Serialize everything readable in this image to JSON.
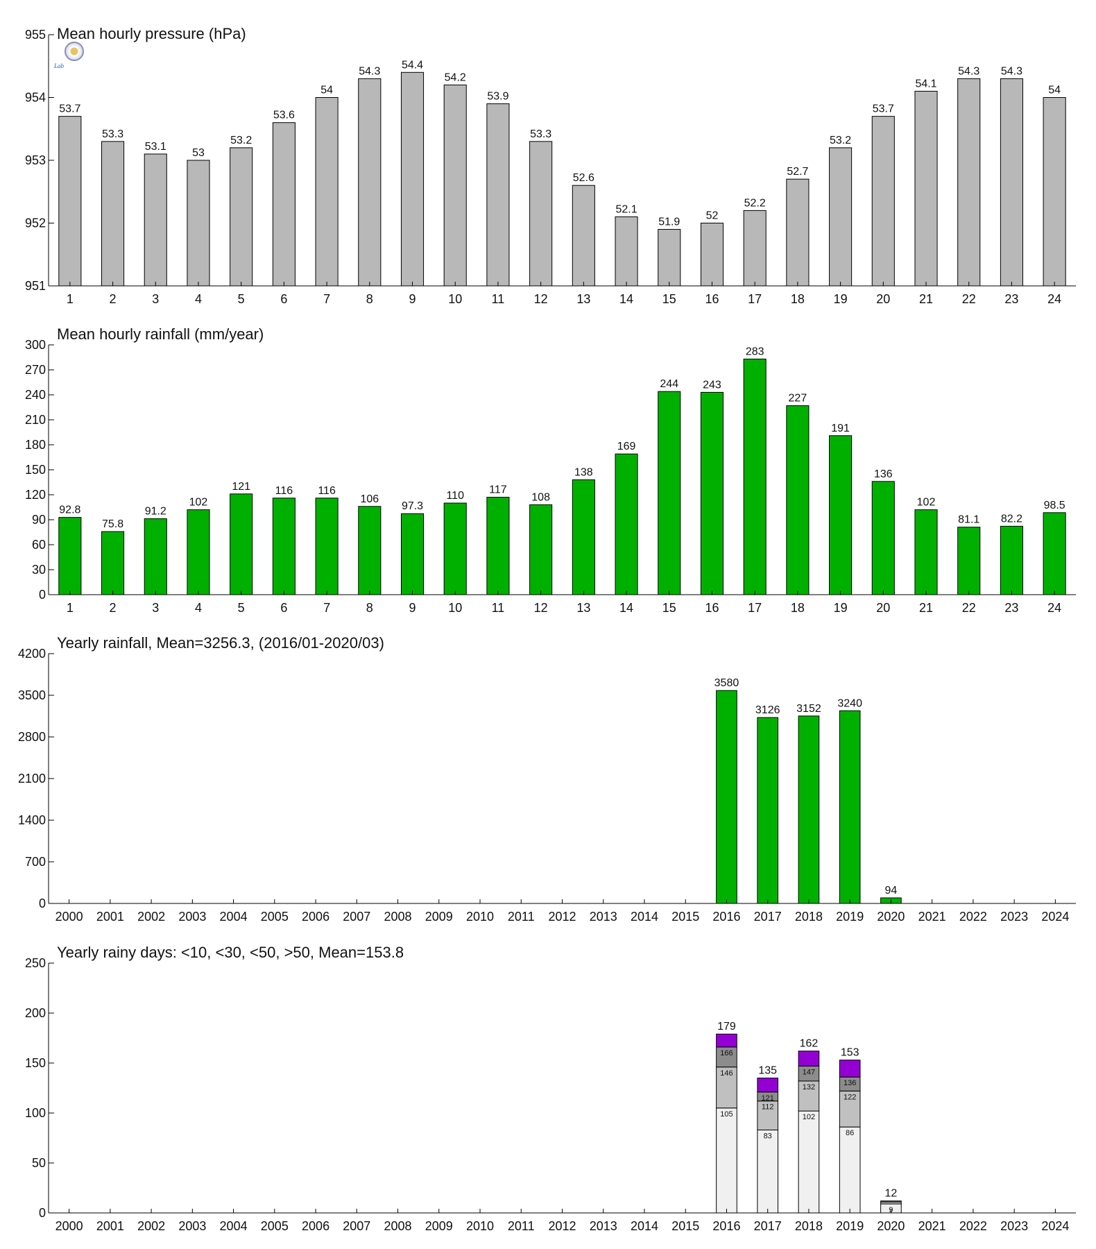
{
  "logo": {
    "text": "Lab",
    "icon": "weather-lab-seal-icon"
  },
  "chart_data": [
    {
      "id": "pressure",
      "type": "bar",
      "title": "Mean hourly pressure (hPa)",
      "categories": [
        "1",
        "2",
        "3",
        "4",
        "5",
        "6",
        "7",
        "8",
        "9",
        "10",
        "11",
        "12",
        "13",
        "14",
        "15",
        "16",
        "17",
        "18",
        "19",
        "20",
        "21",
        "22",
        "23",
        "24"
      ],
      "values": [
        953.7,
        953.3,
        953.1,
        953.0,
        953.2,
        953.6,
        954.0,
        954.3,
        954.4,
        954.2,
        953.9,
        953.3,
        952.6,
        952.1,
        951.9,
        952.0,
        952.2,
        952.7,
        953.2,
        953.7,
        954.1,
        954.3,
        954.3,
        954.0
      ],
      "labels": [
        "53.7",
        "53.3",
        "53.1",
        "53",
        "53.2",
        "53.6",
        "54",
        "54.3",
        "54.4",
        "54.2",
        "53.9",
        "53.3",
        "52.6",
        "52.1",
        "51.9",
        "52",
        "52.2",
        "52.7",
        "53.2",
        "53.7",
        "54.1",
        "54.3",
        "54.3",
        "54"
      ],
      "ylim": [
        951,
        955
      ],
      "yticks": [
        951,
        952,
        953,
        954,
        955
      ],
      "color": "#b8b8b8"
    },
    {
      "id": "hourly-rain",
      "type": "bar",
      "title": "Mean hourly rainfall (mm/year)",
      "categories": [
        "1",
        "2",
        "3",
        "4",
        "5",
        "6",
        "7",
        "8",
        "9",
        "10",
        "11",
        "12",
        "13",
        "14",
        "15",
        "16",
        "17",
        "18",
        "19",
        "20",
        "21",
        "22",
        "23",
        "24"
      ],
      "values": [
        92.8,
        75.8,
        91.2,
        102,
        121,
        116,
        116,
        106,
        97.3,
        110,
        117,
        108,
        138,
        169,
        244,
        243,
        283,
        227,
        191,
        136,
        102,
        81.1,
        82.2,
        98.5
      ],
      "labels": [
        "92.8",
        "75.8",
        "91.2",
        "102",
        "121",
        "116",
        "116",
        "106",
        "97.3",
        "110",
        "117",
        "108",
        "138",
        "169",
        "244",
        "243",
        "283",
        "227",
        "191",
        "136",
        "102",
        "81.1",
        "82.2",
        "98.5"
      ],
      "ylim": [
        0,
        300
      ],
      "yticks": [
        0,
        30,
        60,
        90,
        120,
        150,
        180,
        210,
        240,
        270,
        300
      ],
      "color": "#00b000"
    },
    {
      "id": "yearly-rain",
      "type": "bar",
      "title": "Yearly rainfall, Mean=3256.3, (2016/01-2020/03)",
      "categories": [
        "2000",
        "2001",
        "2002",
        "2003",
        "2004",
        "2005",
        "2006",
        "2007",
        "2008",
        "2009",
        "2010",
        "2011",
        "2012",
        "2013",
        "2014",
        "2015",
        "2016",
        "2017",
        "2018",
        "2019",
        "2020",
        "2021",
        "2022",
        "2023",
        "2024"
      ],
      "values": [
        null,
        null,
        null,
        null,
        null,
        null,
        null,
        null,
        null,
        null,
        null,
        null,
        null,
        null,
        null,
        null,
        3580,
        3126,
        3152,
        3240,
        94,
        null,
        null,
        null,
        null
      ],
      "labels": [
        "",
        "",
        "",
        "",
        "",
        "",
        "",
        "",
        "",
        "",
        "",
        "",
        "",
        "",
        "",
        "",
        "3580",
        "3126",
        "3152",
        "3240",
        "94",
        "",
        "",
        "",
        ""
      ],
      "ylim": [
        0,
        4200
      ],
      "yticks": [
        0,
        700,
        1400,
        2100,
        2800,
        3500,
        4200
      ],
      "color": "#00b000"
    },
    {
      "id": "rainy-days",
      "type": "stacked-bar",
      "title": "Yearly rainy days: <10, <30, <50, >50, Mean=153.8",
      "categories": [
        "2000",
        "2001",
        "2002",
        "2003",
        "2004",
        "2005",
        "2006",
        "2007",
        "2008",
        "2009",
        "2010",
        "2011",
        "2012",
        "2013",
        "2014",
        "2015",
        "2016",
        "2017",
        "2018",
        "2019",
        "2020",
        "2021",
        "2022",
        "2023",
        "2024"
      ],
      "ylim": [
        0,
        250
      ],
      "yticks": [
        0,
        50,
        100,
        150,
        200,
        250
      ],
      "colors": [
        "#f0f0f0",
        "#c0c0c0",
        "#8c8c8c",
        "#9400d3"
      ],
      "bars": [
        {
          "category": "2016",
          "cumulative": [
            105,
            146,
            166,
            179
          ],
          "labels": [
            "105",
            "146",
            "166"
          ],
          "total_label": "179"
        },
        {
          "category": "2017",
          "cumulative": [
            83,
            112,
            121,
            135
          ],
          "labels": [
            "83",
            "112",
            "121"
          ],
          "total_label": "135"
        },
        {
          "category": "2018",
          "cumulative": [
            102,
            132,
            147,
            162
          ],
          "labels": [
            "102",
            "132",
            "147"
          ],
          "total_label": "162"
        },
        {
          "category": "2019",
          "cumulative": [
            86,
            122,
            136,
            153
          ],
          "labels": [
            "86",
            "122",
            "136"
          ],
          "total_label": "153"
        },
        {
          "category": "2020",
          "cumulative": [
            9,
            11,
            12,
            12
          ],
          "labels": [
            "9",
            "",
            ""
          ],
          "total_label": "12"
        }
      ]
    }
  ]
}
